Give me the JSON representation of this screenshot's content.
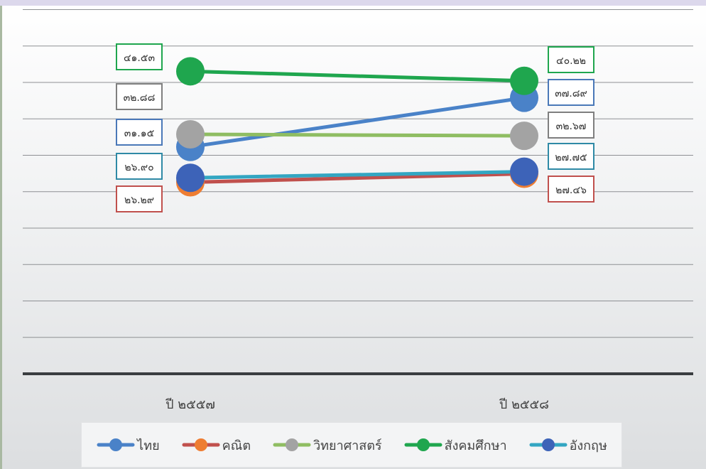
{
  "chart_data": {
    "type": "line",
    "categories": [
      "ปี ๒๕๕๗",
      "ปี ๒๕๕๘"
    ],
    "ylim": [
      0,
      50
    ],
    "grid": true,
    "legend_position": "bottom",
    "series": [
      {
        "name": "ไทย",
        "color": "#4a82c8",
        "values": [
          31.15,
          37.89
        ],
        "labels": [
          "๓๑.๑๕",
          "๓๗.๘๙"
        ],
        "label_border": "#4a78b8"
      },
      {
        "name": "คณิต",
        "color": "#c0504d",
        "values": [
          26.29,
          27.46
        ],
        "labels": [
          "๒๖.๒๙",
          "๒๗.๔๖"
        ],
        "label_border": "#c0504d",
        "marker_color": "#ee7d32"
      },
      {
        "name": "วิทยาศาสตร์",
        "color": "#8fbd62",
        "values": [
          32.88,
          32.67
        ],
        "labels": [
          "๓๒.๘๘",
          "๓๒.๖๗"
        ],
        "label_border": "#7f7f7f",
        "marker_color": "#a3a3a3"
      },
      {
        "name": "สังคมศึกษา",
        "color": "#1fa64e",
        "values": [
          41.53,
          40.22
        ],
        "labels": [
          "๔๑.๕๓",
          "๔๐.๒๒"
        ],
        "label_border": "#1fa64e"
      },
      {
        "name": "อังกฤษ",
        "color": "#33a6c2",
        "values": [
          26.9,
          27.75
        ],
        "labels": [
          "๒๖.๙๐",
          "๒๗.๗๕"
        ],
        "label_border": "#2f8aa6",
        "marker_color": "#3d63b8"
      }
    ]
  }
}
